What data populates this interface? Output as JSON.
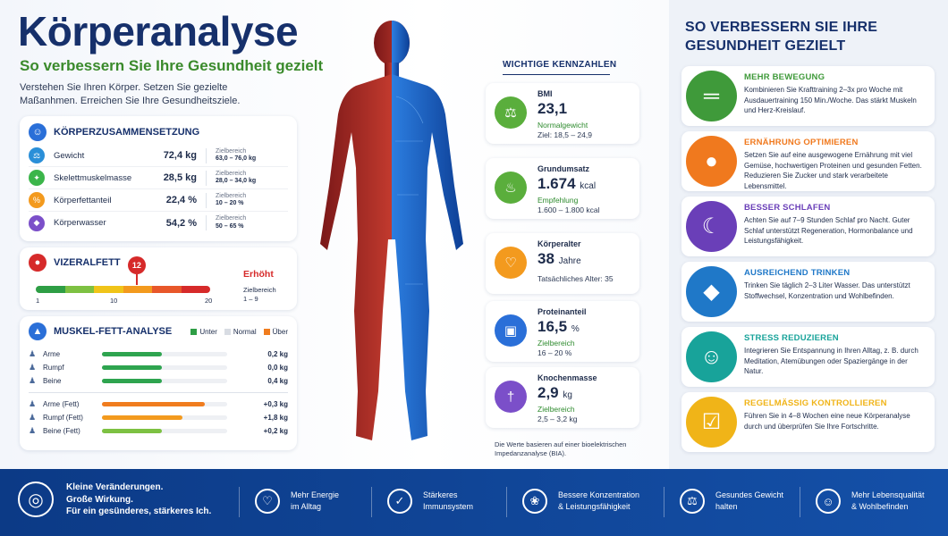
{
  "header": {
    "title": "Körperanalyse",
    "subtitle": "So verbessern Sie Ihre Gesundheit gezielt",
    "intro": "Verstehen Sie Ihren Körper. Setzen Sie gezielte Maßanhmen. Erreichen Sie Ihre Gesundheitsziele."
  },
  "composition": {
    "title": "KÖRPERZUSAMMENSETZUNG",
    "range_label": "Zielbereich",
    "rows": [
      {
        "label": "Gewicht",
        "value": "72,4 kg",
        "range": "63,0 – 76,0 kg",
        "icon": "scale-icon",
        "color": "#2a8fd8"
      },
      {
        "label": "Skelettmuskelmasse",
        "value": "28,5 kg",
        "range": "28,0 – 34,0 kg",
        "icon": "muscle-icon",
        "color": "#3bb54a"
      },
      {
        "label": "Körperfettanteil",
        "value": "22,4 %",
        "range": "10 – 20 %",
        "icon": "percent-icon",
        "color": "#f39a1e"
      },
      {
        "label": "Körperwasser",
        "value": "54,2 %",
        "range": "50 – 65 %",
        "icon": "drop-icon",
        "color": "#7b4fc9"
      }
    ]
  },
  "visceral": {
    "title": "VIZERALFETT",
    "value": "12",
    "value_num": 12,
    "scale_min": 1,
    "scale_max": 20,
    "status": "Erhöht",
    "range_label": "Zielbereich",
    "range": "1 – 9",
    "ticks": [
      "1",
      "10",
      "20"
    ],
    "colors": [
      "#2e9e45",
      "#7dc142",
      "#f0c419",
      "#f39a1e",
      "#e8572a",
      "#d62a2a"
    ]
  },
  "muscle_fat": {
    "title": "MUSKEL-FETT-ANALYSE",
    "legend": [
      {
        "label": "Unter",
        "color": "#2e9e45"
      },
      {
        "label": "Normal",
        "color": "#d8dce3"
      },
      {
        "label": "Über",
        "color": "#f07c1e"
      }
    ],
    "muscle": [
      {
        "label": "Arme",
        "value": "0,2 kg",
        "fill": 0.48,
        "color": "#2ea44f"
      },
      {
        "label": "Rumpf",
        "value": "0,0 kg",
        "fill": 0.48,
        "color": "#2ea44f"
      },
      {
        "label": "Beine",
        "value": "0,4 kg",
        "fill": 0.48,
        "color": "#2ea44f"
      }
    ],
    "fat": [
      {
        "label": "Arme (Fett)",
        "value": "+0,3 kg",
        "fill": 0.82,
        "color": "#f07c1e"
      },
      {
        "label": "Rumpf (Fett)",
        "value": "+1,8 kg",
        "fill": 0.64,
        "color": "#f39a1e"
      },
      {
        "label": "Beine (Fett)",
        "value": "+0,2 kg",
        "fill": 0.48,
        "color": "#7dc142"
      }
    ]
  },
  "kpis": {
    "title": "WICHTIGE KENNZAHLEN",
    "items": [
      {
        "label": "BMI",
        "value": "23,1",
        "unit": "",
        "status": "Normalgewicht",
        "detail": "Ziel: 18,5 – 24,9",
        "icon": "scale-icon",
        "color": "#5aae3c"
      },
      {
        "label": "Grundumsatz",
        "value": "1.674",
        "unit": "kcal",
        "status": "Empfehlung",
        "detail": "1.600 – 1.800 kcal",
        "icon": "flame-icon",
        "color": "#5aae3c"
      },
      {
        "label": "Körperalter",
        "value": "38",
        "unit": "Jahre",
        "status": "",
        "detail": "Tatsächliches Alter: 35",
        "icon": "heartbeat-icon",
        "color": "#f39a1e"
      },
      {
        "label": "Proteinanteil",
        "value": "16,5",
        "unit": "%",
        "status": "Zielbereich",
        "detail": "16 – 20 %",
        "icon": "protein-jar-icon",
        "color": "#2a6fd8"
      },
      {
        "label": "Knochenmasse",
        "value": "2,9",
        "unit": "kg",
        "status": "Zielbereich",
        "detail": "2,5 – 3,2 kg",
        "icon": "bone-icon",
        "color": "#7b4fc9"
      }
    ],
    "note": "Die Werte basieren auf einer bioelektrischen Impedanzanalyse (BIA)."
  },
  "tips": {
    "title": "SO VERBESSERN SIE IHRE GESUNDHEIT GEZIELT",
    "items": [
      {
        "title": "MEHR BEWEGUNG",
        "text": "Kombinieren Sie Krafttraining 2–3x pro Woche mit Ausdauertraining 150 Min./Woche. Das stärkt Muskeln und Herz-Kreislauf.",
        "icon": "dumbbell-icon",
        "color": "#3f9a3a"
      },
      {
        "title": "ERNÄHRUNG OPTIMIEREN",
        "text": "Setzen Sie auf eine ausgewogene Ernährung mit viel Gemüse, hochwertigen Proteinen und gesunden Fetten. Reduzieren Sie Zucker und stark verarbeitete Lebensmittel.",
        "icon": "apple-icon",
        "color": "#f0791e"
      },
      {
        "title": "BESSER SCHLAFEN",
        "text": "Achten Sie auf 7–9 Stunden Schlaf pro Nacht. Guter Schlaf unterstützt Regeneration, Hormonbalance und Leistungsfähigkeit.",
        "icon": "moon-icon",
        "color": "#6a3fb8"
      },
      {
        "title": "AUSREICHEND TRINKEN",
        "text": "Trinken Sie täglich 2–3 Liter Wasser. Das unterstützt Stoffwechsel, Konzentration und Wohlbefinden.",
        "icon": "water-drop-icon",
        "color": "#1f78c8"
      },
      {
        "title": "STRESS REDUZIEREN",
        "text": "Integrieren Sie Entspannung in Ihren Alltag, z. B. durch Meditation, Atemübungen oder Spaziergänge in der Natur.",
        "icon": "meditation-icon",
        "color": "#18a39a"
      },
      {
        "title": "REGELMÄSSIG KONTROLLIEREN",
        "text": "Führen Sie in 4–8 Wochen eine neue Körperanalyse durch und überprüfen Sie Ihre Fortschritte.",
        "icon": "clipboard-icon",
        "color": "#f0b418"
      }
    ]
  },
  "footer": {
    "main": [
      "Kleine Veränderungen.",
      "Große Wirkung.",
      "Für ein gesünderes, stärkeres Ich."
    ],
    "items": [
      {
        "line1": "Mehr Energie",
        "line2": "im Alltag",
        "icon": "heart-icon"
      },
      {
        "line1": "Stärkeres",
        "line2": "Immunsystem",
        "icon": "shield-check-icon"
      },
      {
        "line1": "Bessere Konzentration",
        "line2": "& Leistungsfähigkeit",
        "icon": "brain-icon"
      },
      {
        "line1": "Gesundes Gewicht",
        "line2": "halten",
        "icon": "scale-icon"
      },
      {
        "line1": "Mehr Lebensqualität",
        "line2": "& Wohlbefinden",
        "icon": "smile-icon"
      }
    ]
  }
}
